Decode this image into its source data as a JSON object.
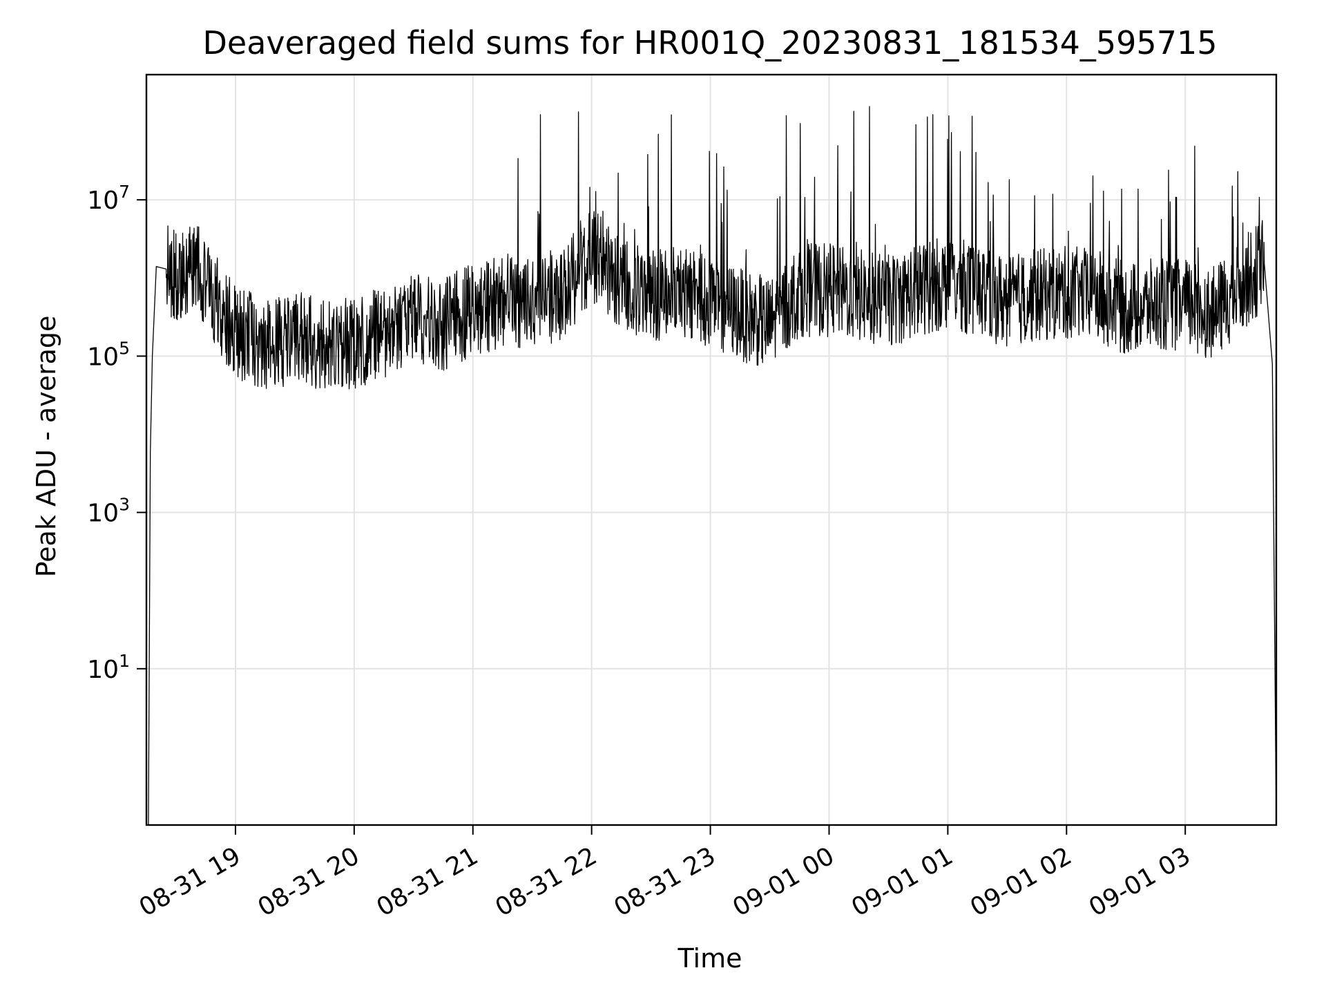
{
  "chart_data": {
    "type": "line",
    "title": "Deaveraged field sums for HR001Q_20230831_181534_595715",
    "xlabel": "Time",
    "ylabel": "Peak ADU - average",
    "yscale": "log",
    "ylim": [
      0.1,
      400000000
    ],
    "xlim": [
      "08-31 18:15",
      "09-01 03:46"
    ],
    "grid": true,
    "line_color": "#000000",
    "x_ticks": [
      "08-31 19",
      "08-31 20",
      "08-31 21",
      "08-31 22",
      "08-31 23",
      "09-01 00",
      "09-01 01",
      "09-01 02",
      "09-01 03"
    ],
    "y_ticks": [
      {
        "base": "10",
        "exp": "1",
        "value": 10
      },
      {
        "base": "10",
        "exp": "3",
        "value": 1000
      },
      {
        "base": "10",
        "exp": "5",
        "value": 100000
      },
      {
        "base": "10",
        "exp": "7",
        "value": 10000000
      }
    ],
    "series": [
      {
        "x": [
          "08-31 18:16",
          "08-31 18:17",
          "08-31 18:18",
          "08-31 18:20",
          "08-31 18:25",
          "08-31 18:30",
          "08-31 18:40",
          "08-31 18:50",
          "08-31 19:00",
          "08-31 19:15",
          "08-31 19:30",
          "08-31 19:45",
          "08-31 20:00",
          "08-31 20:15",
          "08-31 20:30",
          "08-31 20:45",
          "08-31 21:00",
          "08-31 21:15",
          "08-31 21:30",
          "08-31 21:45",
          "08-31 22:00",
          "08-31 22:15",
          "08-31 22:30",
          "08-31 22:45",
          "08-31 23:00",
          "08-31 23:15",
          "08-31 23:30",
          "08-31 23:45",
          "09-01 00:00",
          "09-01 00:15",
          "09-01 00:30",
          "09-01 00:45",
          "09-01 01:00",
          "09-01 01:15",
          "09-01 01:30",
          "09-01 01:45",
          "09-01 02:00",
          "09-01 02:15",
          "09-01 02:30",
          "09-01 02:45",
          "09-01 03:00",
          "09-01 03:15",
          "09-01 03:30",
          "09-01 03:40",
          "09-01 03:44",
          "09-01 03:46"
        ],
        "y": [
          0.1,
          6000,
          100000,
          1400000,
          1300000,
          1000000,
          1400000,
          500000,
          200000,
          150000,
          170000,
          140000,
          150000,
          200000,
          300000,
          250000,
          400000,
          500000,
          500000,
          600000,
          2000000,
          900000,
          600000,
          700000,
          500000,
          350000,
          250000,
          700000,
          700000,
          600000,
          500000,
          700000,
          900000,
          700000,
          500000,
          600000,
          650000,
          600000,
          400000,
          450000,
          450000,
          350000,
          900000,
          1500000,
          80000,
          0.1
        ]
      }
    ]
  }
}
